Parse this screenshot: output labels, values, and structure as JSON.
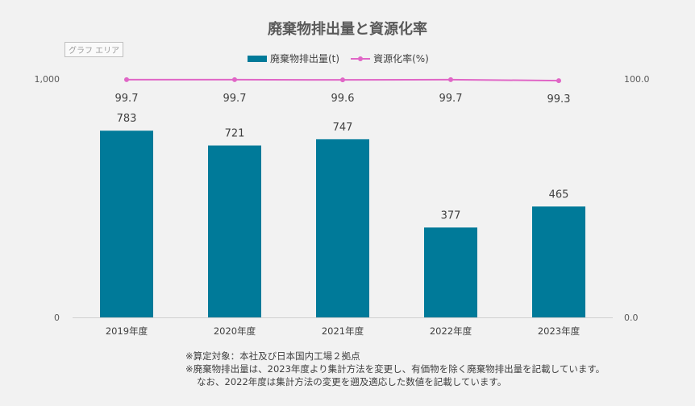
{
  "chart_data": {
    "type": "bar+line",
    "title": "廃棄物排出量と資源化率",
    "categories": [
      "2019年度",
      "2020年度",
      "2021年度",
      "2022年度",
      "2023年度"
    ],
    "series": [
      {
        "name": "廃棄物排出量(t)",
        "type": "bar",
        "axis": "left",
        "values": [
          783,
          721,
          747,
          377,
          465
        ],
        "labels": [
          "783",
          "721",
          "747",
          "377",
          "465"
        ],
        "color": "#007A99"
      },
      {
        "name": "資源化率(%)",
        "type": "line",
        "axis": "right",
        "values": [
          99.7,
          99.7,
          99.6,
          99.7,
          99.3
        ],
        "labels": [
          "99.7",
          "99.7",
          "99.6",
          "99.7",
          "99.3"
        ],
        "color": "#E066C6"
      }
    ],
    "y_left": {
      "ylim": [
        0,
        1000
      ],
      "ticks": [
        "0",
        "1,000"
      ]
    },
    "y_right": {
      "ylim": [
        0.0,
        100.0
      ],
      "ticks": [
        "0.0",
        "100.0"
      ]
    },
    "legend_position": "top-center",
    "grid": false,
    "graph_area_label": "グラフ エリア"
  },
  "footnotes": [
    "※算定対象：本社及び日本国内工場２拠点",
    "※廃棄物排出量は、2023年度より集計方法を変更し、有価物を除く廃棄物排出量を記載しています。",
    "なお、2022年度は集計方法の変更を遡及適応した数値を記載しています。"
  ]
}
